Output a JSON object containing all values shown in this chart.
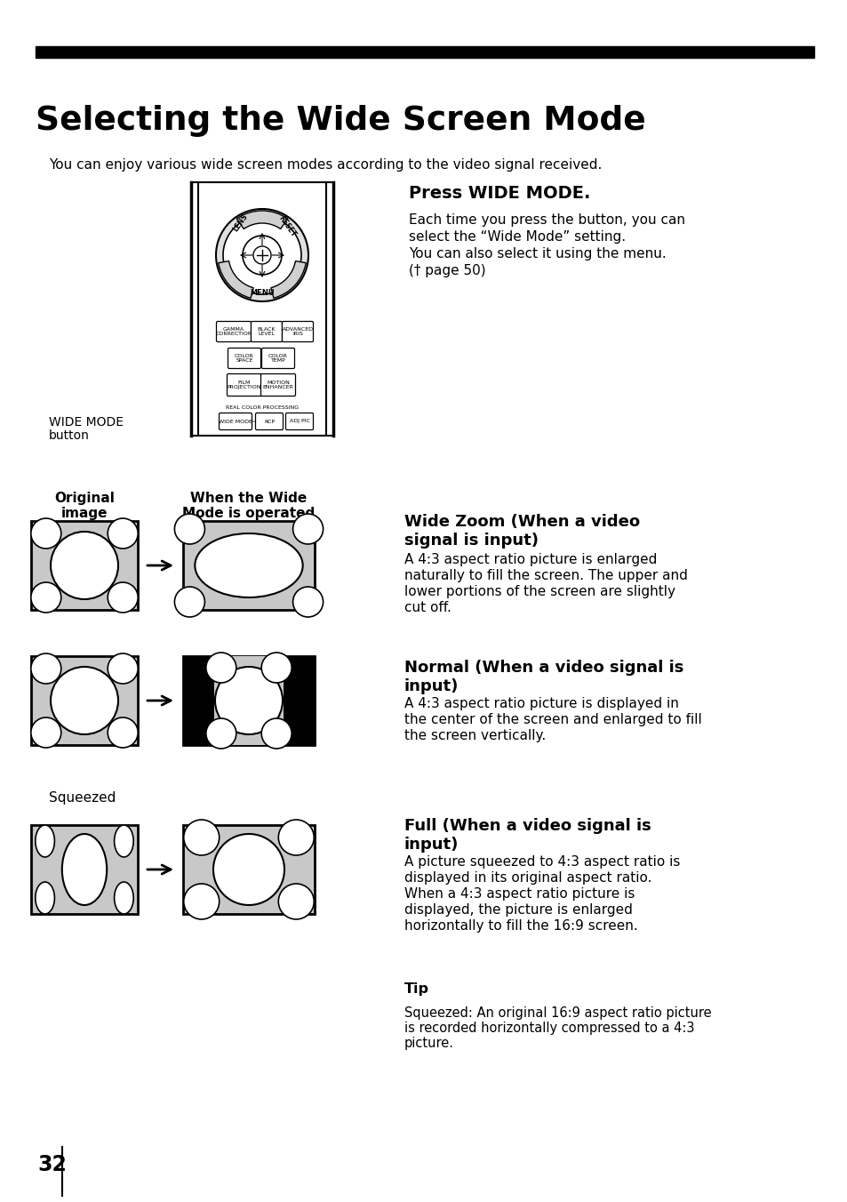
{
  "title": "Selecting the Wide Screen Mode",
  "subtitle": "You can enjoy various wide screen modes according to the video signal received.",
  "press_heading": "Press WIDE MODE.",
  "press_text": "Each time you press the button, you can\nselect the “Wide Mode” setting.\nYou can also select it using the menu.\n(† page 50)",
  "wide_zoom_heading": "Wide Zoom (When a video\nsignal is input)",
  "wide_zoom_text": "A 4:3 aspect ratio picture is enlarged\nnaturally to fill the screen. The upper and\nlower portions of the screen are slightly\ncut off.",
  "normal_heading": "Normal (When a video signal is\ninput)",
  "normal_text": "A 4:3 aspect ratio picture is displayed in\nthe center of the screen and enlarged to fill\nthe screen vertically.",
  "full_heading": "Full (When a video signal is\ninput)",
  "full_text": "A picture squeezed to 4:3 aspect ratio is\ndisplayed in its original aspect ratio.\nWhen a 4:3 aspect ratio picture is\ndisplayed, the picture is enlarged\nhorizontally to fill the 16:9 screen.",
  "tip_heading": "Tip",
  "tip_text": "Squeezed: An original 16:9 aspect ratio picture\nis recorded horizontally compressed to a 4:3\npicture.",
  "orig_label": "Original\nimage",
  "wide_label": "When the Wide\nMode is operated",
  "squeezed_label": "Squeezed",
  "wide_mode_label": "WIDE MODE\nbutton",
  "page_number": "32",
  "bg_color": "#ffffff",
  "text_color": "#000000",
  "gray_color": "#c8c8c8",
  "dark_gray": "#808080"
}
